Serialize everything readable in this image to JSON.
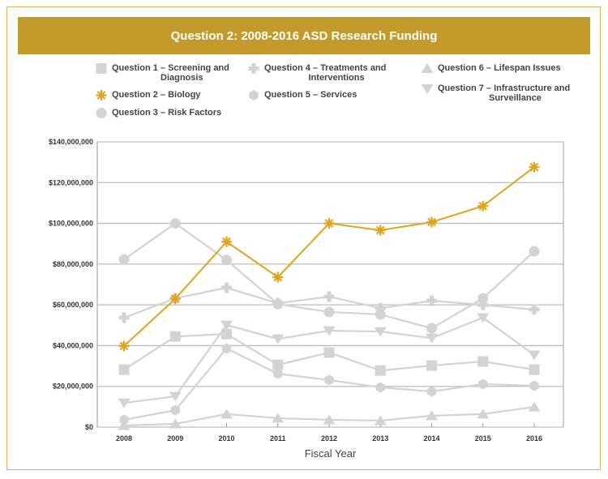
{
  "chart_data": {
    "type": "line",
    "title": "Question 2: 2008-2016 ASD Research Funding",
    "xlabel": "Fiscal Year",
    "ylabel": "",
    "x": [
      "2008",
      "2009",
      "2010",
      "2011",
      "2012",
      "2013",
      "2014",
      "2015",
      "2016"
    ],
    "ylim": [
      0,
      140000000
    ],
    "yticks": [
      0,
      20000000,
      40000000,
      60000000,
      80000000,
      100000000,
      120000000,
      140000000
    ],
    "ytick_labels": [
      "$0",
      "$20,000,000",
      "$40,000,000",
      "$60,000,000",
      "$80,000,000",
      "$100,000,000",
      "$120,000,000",
      "$140,000,000"
    ],
    "grid": "horizontal",
    "legend_position": "top",
    "series": [
      {
        "name": "Question 1 – Screening and Diagnosis",
        "line1": "Question 1 – Screening and",
        "line2": "Diagnosis",
        "marker": "square",
        "color": "#d3d3d3",
        "values": [
          28200000,
          44500000,
          45700000,
          30600000,
          36600000,
          27800000,
          30200000,
          32200000,
          28200000
        ]
      },
      {
        "name": "Question 2 – Biology",
        "line1": "Question 2 – Biology",
        "line2": "",
        "marker": "asterisk",
        "color": "#e0a31c",
        "values": [
          39800000,
          63000000,
          91000000,
          73600000,
          100000000,
          96600000,
          100600000,
          108500000,
          127600000
        ]
      },
      {
        "name": "Question 3 – Risk Factors",
        "line1": "Question 3 – Risk Factors",
        "line2": "",
        "marker": "circle",
        "color": "#d3d3d3",
        "values": [
          82300000,
          100000000,
          82000000,
          60400000,
          56500000,
          55300000,
          48500000,
          63200000,
          86300000
        ]
      },
      {
        "name": "Question 4 – Treatments and Interventions",
        "line1": "Question 4 – Treatments and",
        "line2": "Interventions",
        "marker": "plus",
        "color": "#d3d3d3",
        "values": [
          53700000,
          63200000,
          68400000,
          60800000,
          64000000,
          58400000,
          62000000,
          60000000,
          57700000
        ]
      },
      {
        "name": "Question 5 – Services",
        "line1": "Question 5 – Services",
        "line2": "",
        "marker": "hexagon",
        "color": "#d3d3d3",
        "values": [
          3600000,
          8300000,
          38600000,
          26200000,
          23100000,
          19500000,
          17500000,
          21100000,
          20300000
        ]
      },
      {
        "name": "Question 6 – Lifespan Issues",
        "line1": "Question 6 – Lifespan Issues",
        "line2": "",
        "marker": "triangle-up",
        "color": "#d3d3d3",
        "values": [
          800000,
          1600000,
          6400000,
          4400000,
          3600000,
          3200000,
          5600000,
          6400000,
          9900000
        ]
      },
      {
        "name": "Question 7 – Infrastructure and Surveillance",
        "line1": "Question 7 – Infrastructure and",
        "line2": "Surveillance",
        "marker": "triangle-down",
        "color": "#d3d3d3",
        "values": [
          11900000,
          15100000,
          50100000,
          43300000,
          47300000,
          46900000,
          43700000,
          53700000,
          35400000
        ]
      }
    ]
  },
  "colors": {
    "accent": "#c49a2a",
    "highlight": "#e0a31c",
    "muted": "#d3d3d3",
    "grid": "#bdbdbd"
  }
}
